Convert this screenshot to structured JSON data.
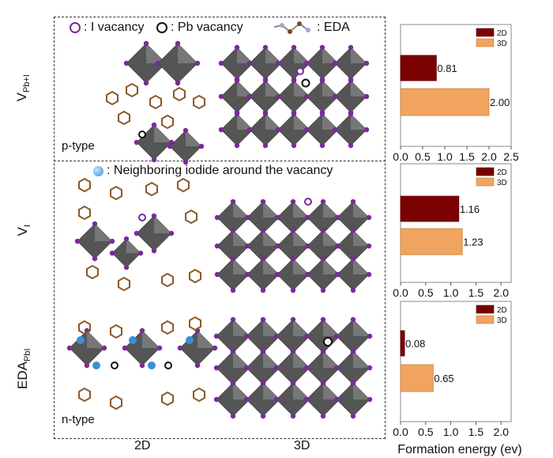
{
  "legend": {
    "i_vacancy": ": I vacancy",
    "pb_vacancy": ": Pb vacancy",
    "eda": ": EDA",
    "neighboring_iodide": ": Neighboring iodide around the vacancy"
  },
  "rows": [
    {
      "label_main": "V",
      "label_sub": "Pb+I",
      "type": "p-type"
    },
    {
      "label_main": "V",
      "label_sub": "I",
      "type": ""
    },
    {
      "label_main": "EDA",
      "label_sub": "PbI",
      "type": "n-type"
    }
  ],
  "columns": [
    "2D",
    "3D"
  ],
  "colors": {
    "2D": "#7b0000",
    "3D": "#f0a460",
    "iodine": "#7a2a9a",
    "octahedron": "#555555"
  },
  "chart_data": [
    {
      "type": "bar",
      "orientation": "horizontal",
      "categories": [
        "2D",
        "3D"
      ],
      "values": [
        0.81,
        2.0
      ],
      "labels": [
        "0.81",
        "2.00"
      ],
      "xlim": [
        0,
        2.5
      ],
      "xticks": [
        "0.0",
        "0.5",
        "1.0",
        "1.5",
        "2.0",
        "2.5"
      ],
      "xlabel": "",
      "legend": [
        "2D",
        "3D"
      ],
      "legend_position": "top-right"
    },
    {
      "type": "bar",
      "orientation": "horizontal",
      "categories": [
        "2D",
        "3D"
      ],
      "values": [
        1.16,
        1.23
      ],
      "labels": [
        "1.16",
        "1.23"
      ],
      "xlim": [
        0,
        2.2
      ],
      "xticks": [
        "0.0",
        "0.5",
        "1.0",
        "1.5",
        "2.0"
      ],
      "xlabel": "",
      "legend": [
        "2D",
        "3D"
      ],
      "legend_position": "top-right"
    },
    {
      "type": "bar",
      "orientation": "horizontal",
      "categories": [
        "2D",
        "3D"
      ],
      "values": [
        0.08,
        0.65
      ],
      "labels": [
        "0.08",
        "0.65"
      ],
      "xlim": [
        0,
        2.2
      ],
      "xticks": [
        "0.0",
        "0.5",
        "1.0",
        "1.5",
        "2.0"
      ],
      "xlabel": "Formation energy (ev)",
      "legend": [
        "2D",
        "3D"
      ],
      "legend_position": "top-right"
    }
  ]
}
